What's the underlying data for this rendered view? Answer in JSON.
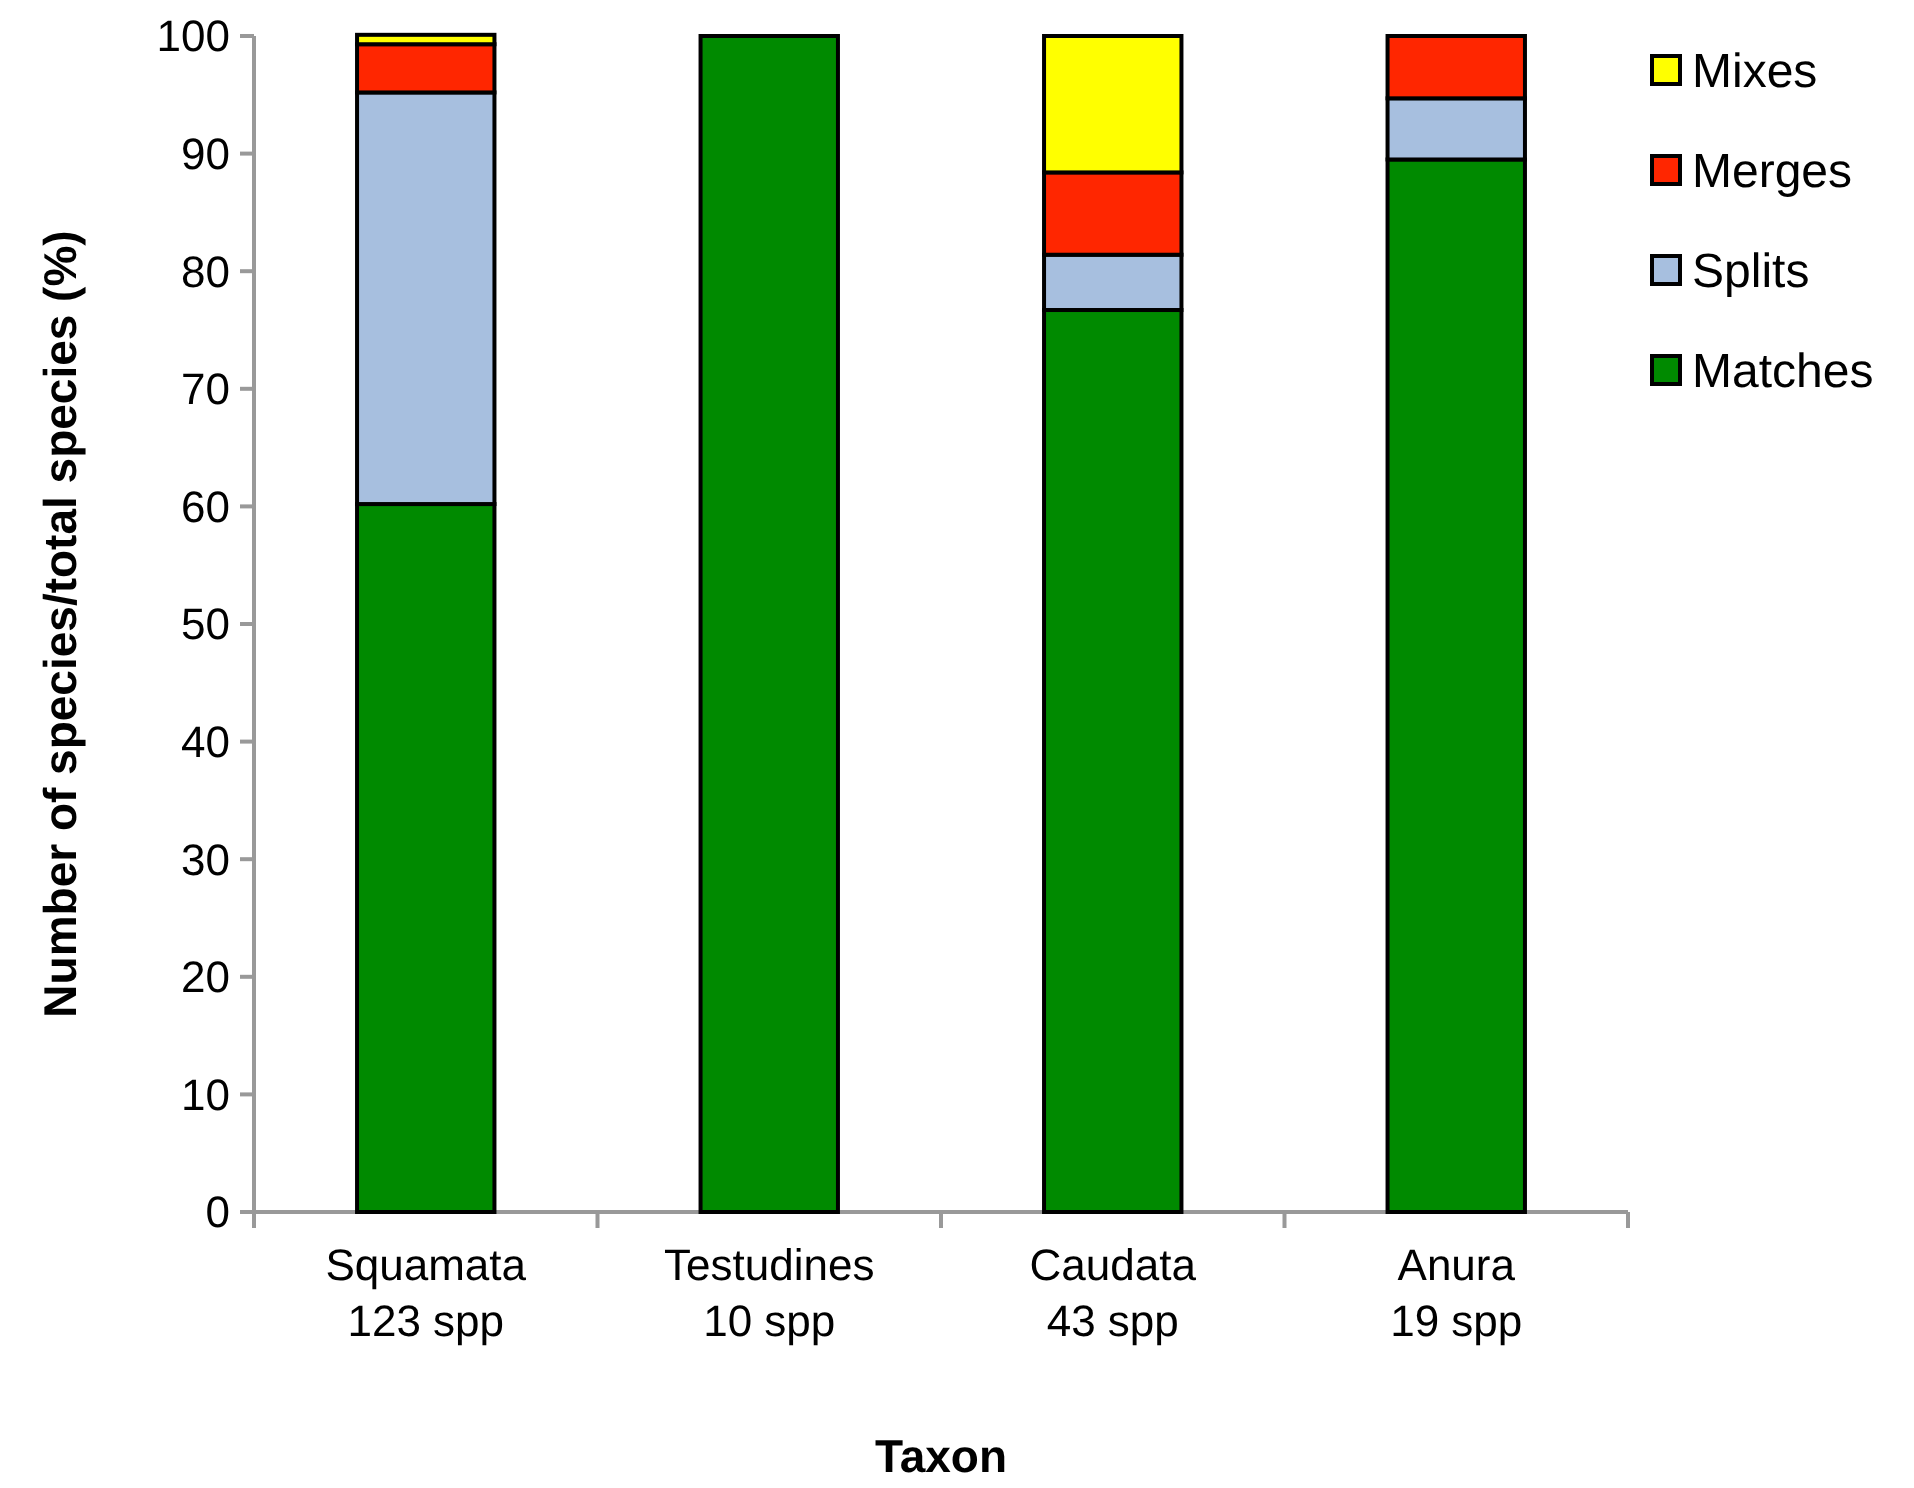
{
  "chart_data": {
    "type": "bar",
    "stacked": true,
    "xlabel": "Taxon",
    "ylabel": "Number of species/total species (%)",
    "categories": [
      "Squamata\n123 spp",
      "Testudines\n10 spp",
      "Caudata\n43 spp",
      "Anura\n19 spp"
    ],
    "series": [
      {
        "name": "Matches",
        "color": "#008a00",
        "values": [
          60.2,
          100,
          76.7,
          89.5
        ]
      },
      {
        "name": "Splits",
        "color": "#a7bfdf",
        "values": [
          35.0,
          0,
          4.7,
          5.2
        ]
      },
      {
        "name": "Merges",
        "color": "#ff2600",
        "values": [
          4.1,
          0,
          7.0,
          5.3
        ]
      },
      {
        "name": "Mixes",
        "color": "#ffff00",
        "values": [
          0.8,
          0,
          11.6,
          0
        ]
      }
    ],
    "ylim": [
      0,
      100
    ],
    "yticks": [
      0,
      10,
      20,
      30,
      40,
      50,
      60,
      70,
      80,
      90,
      100
    ],
    "legend": "right"
  }
}
